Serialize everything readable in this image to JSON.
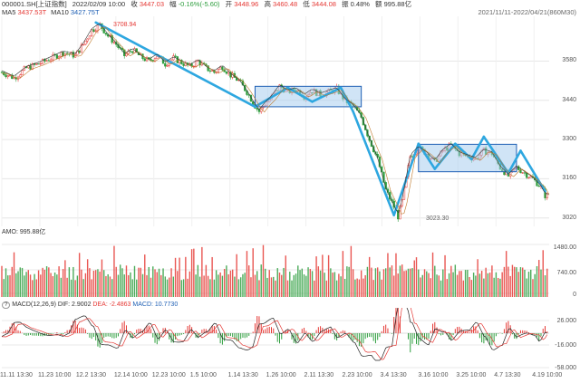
{
  "header": {
    "symbol": "000001.SH[上证指数]",
    "datetime": "2022/02/09 10:00",
    "close_label": "收",
    "close": "3447.03",
    "change_label": "幅",
    "change": "-0.16%(-5.60)",
    "open_label": "开",
    "open": "3448.96",
    "high_label": "高",
    "high": "3460.48",
    "low_label": "低",
    "low": "3444.08",
    "amp_label": "振",
    "amp": "0.48%",
    "vol_label": "额",
    "vol": "995.88亿",
    "range": "2021/11/11-2022/04/21(860M30)"
  },
  "ma": {
    "ma5_label": "MA5",
    "ma5": "3437.53T",
    "ma10_label": "MA10",
    "ma10": "3427.75T"
  },
  "annotations": {
    "high_label": "3708.94",
    "low_label": "3023.30"
  },
  "amo": {
    "label": "AMO: 995.88亿",
    "ticks": [
      "1480.00",
      "740.00",
      "0"
    ]
  },
  "macd": {
    "help": "?",
    "title": "MACD(12,26,9)",
    "dif": "DIF: 2.9002",
    "dea": "DEA: -2.4863",
    "macd_val": "MACD: 10.7730",
    "ticks": [
      "26.000",
      "-16.000",
      "-58.000"
    ]
  },
  "colors": {
    "up": "#e53935",
    "down": "#2e9e3e",
    "trend": "#2ea7e0",
    "box_fill": "#a9cdef",
    "box_stroke": "#1e5fb4"
  },
  "chart_data": {
    "type": "candlestick",
    "title": "",
    "y_ticks": [
      3580,
      3440,
      3300,
      3160,
      3020
    ],
    "ylim": [
      2990,
      3740
    ],
    "x_tick_labels": [
      "11.11 13:30",
      "11.23 10:00",
      "12.2 13:30",
      "12.14 10:00",
      "12.23 10:00",
      "1.5 10:00",
      "1.14 13:30",
      "1.26 10:00",
      "2.11 13:30",
      "2.23 10:00",
      "3.4 13:30",
      "3.16 10:00",
      "3.25 10:00",
      "4.7 13:30",
      "4.19 10:00"
    ],
    "price_path": [
      [
        0,
        3540
      ],
      [
        3,
        3520
      ],
      [
        6,
        3555
      ],
      [
        9,
        3570
      ],
      [
        12,
        3590
      ],
      [
        15,
        3610
      ],
      [
        18,
        3600
      ],
      [
        20,
        3640
      ],
      [
        22,
        3690
      ],
      [
        24,
        3709
      ],
      [
        26,
        3670
      ],
      [
        28,
        3640
      ],
      [
        30,
        3600
      ],
      [
        32,
        3620
      ],
      [
        34,
        3595
      ],
      [
        36,
        3580
      ],
      [
        38,
        3600
      ],
      [
        40,
        3570
      ],
      [
        42,
        3590
      ],
      [
        44,
        3575
      ],
      [
        46,
        3560
      ],
      [
        48,
        3580
      ],
      [
        50,
        3555
      ],
      [
        52,
        3540
      ],
      [
        54,
        3560
      ],
      [
        56,
        3530
      ],
      [
        58,
        3510
      ],
      [
        60,
        3470
      ],
      [
        62,
        3420
      ],
      [
        63,
        3400
      ],
      [
        64,
        3420
      ],
      [
        66,
        3450
      ],
      [
        68,
        3490
      ],
      [
        70,
        3470
      ],
      [
        72,
        3480
      ],
      [
        74,
        3455
      ],
      [
        76,
        3475
      ],
      [
        78,
        3460
      ],
      [
        80,
        3470
      ],
      [
        82,
        3480
      ],
      [
        84,
        3440
      ],
      [
        86,
        3420
      ],
      [
        88,
        3380
      ],
      [
        90,
        3300
      ],
      [
        92,
        3230
      ],
      [
        94,
        3120
      ],
      [
        96,
        3060
      ],
      [
        97,
        3025
      ],
      [
        98,
        3080
      ],
      [
        100,
        3240
      ],
      [
        102,
        3270
      ],
      [
        104,
        3250
      ],
      [
        106,
        3220
      ],
      [
        108,
        3260
      ],
      [
        110,
        3280
      ],
      [
        112,
        3250
      ],
      [
        114,
        3240
      ],
      [
        116,
        3230
      ],
      [
        118,
        3260
      ],
      [
        120,
        3250
      ],
      [
        122,
        3200
      ],
      [
        124,
        3170
      ],
      [
        126,
        3200
      ],
      [
        128,
        3180
      ],
      [
        130,
        3160
      ],
      [
        132,
        3130
      ],
      [
        133,
        3100
      ]
    ],
    "trend_lines": [
      [
        [
          23,
          3718
        ],
        [
          62,
          3417
        ]
      ],
      [
        [
          62,
          3417
        ],
        [
          70,
          3485
        ]
      ],
      [
        [
          70,
          3485
        ],
        [
          76,
          3435
        ]
      ],
      [
        [
          76,
          3435
        ],
        [
          83,
          3485
        ]
      ],
      [
        [
          83,
          3485
        ],
        [
          86,
          3400
        ]
      ],
      [
        [
          86,
          3400
        ],
        [
          96,
          3030
        ]
      ],
      [
        [
          96,
          3030
        ],
        [
          102,
          3285
        ]
      ],
      [
        [
          102,
          3285
        ],
        [
          106,
          3195
        ]
      ],
      [
        [
          106,
          3195
        ],
        [
          111,
          3285
        ]
      ],
      [
        [
          111,
          3285
        ],
        [
          115,
          3230
        ]
      ],
      [
        [
          115,
          3230
        ],
        [
          118,
          3310
        ]
      ],
      [
        [
          118,
          3310
        ],
        [
          124,
          3180
        ]
      ],
      [
        [
          124,
          3180
        ],
        [
          127,
          3260
        ]
      ],
      [
        [
          127,
          3260
        ],
        [
          133,
          3115
        ]
      ]
    ],
    "boxes": [
      {
        "x0": 62,
        "x1": 88,
        "y0": 3417,
        "y1": 3490
      },
      {
        "x0": 102,
        "x1": 126,
        "y0": 3185,
        "y1": 3283
      }
    ]
  }
}
